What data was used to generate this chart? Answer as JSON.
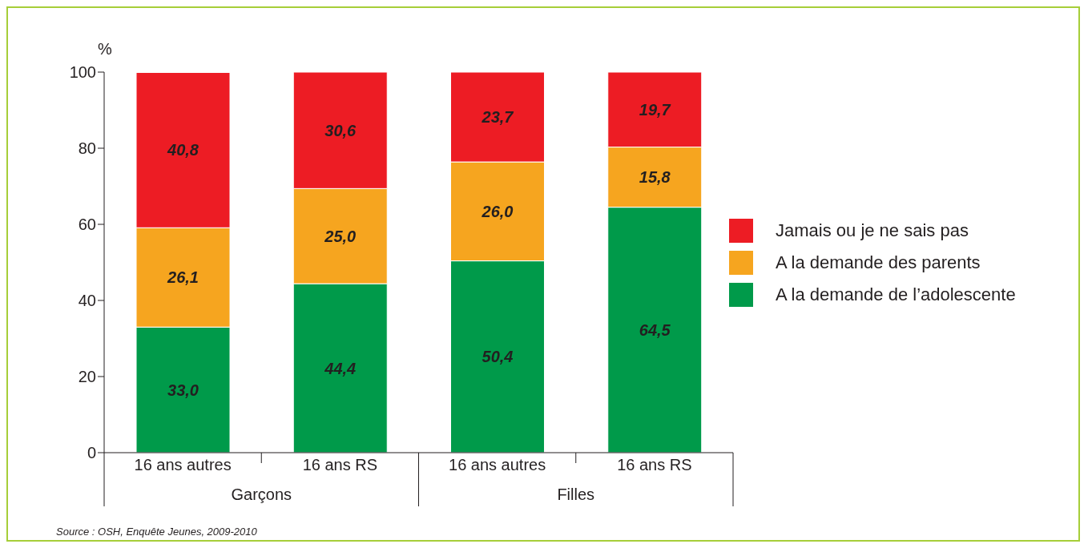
{
  "chart_data": {
    "type": "bar",
    "stacked": true,
    "ylabel": "%",
    "categories": [
      "16 ans autres",
      "16 ans RS",
      "16 ans autres",
      "16 ans RS"
    ],
    "series": [
      {
        "name": "A la demande de l’adolescente",
        "color": "#009a4a",
        "values": [
          33.0,
          44.4,
          50.4,
          64.5
        ],
        "value_labels": [
          "33,0",
          "44,4",
          "50,4",
          "64,5"
        ]
      },
      {
        "name": "A la demande des parents",
        "color": "#f6a51f",
        "values": [
          26.1,
          25.0,
          26.0,
          15.8
        ],
        "value_labels": [
          "26,1",
          "25,0",
          "26,0",
          "15,8"
        ]
      },
      {
        "name": "Jamais ou je ne sais pas",
        "color": "#ed1c24",
        "values": [
          40.8,
          30.6,
          23.7,
          19.7
        ],
        "value_labels": [
          "40,8",
          "30,6",
          "23,7",
          "19,7"
        ]
      }
    ],
    "ylim": [
      0,
      100
    ],
    "yticks": [
      0,
      20,
      40,
      60,
      80,
      100
    ],
    "legend": "right",
    "annotations": [
      "Garçons",
      "Filles",
      "Source : OSH, Enquête Jeunes, 2009-2010"
    ]
  }
}
